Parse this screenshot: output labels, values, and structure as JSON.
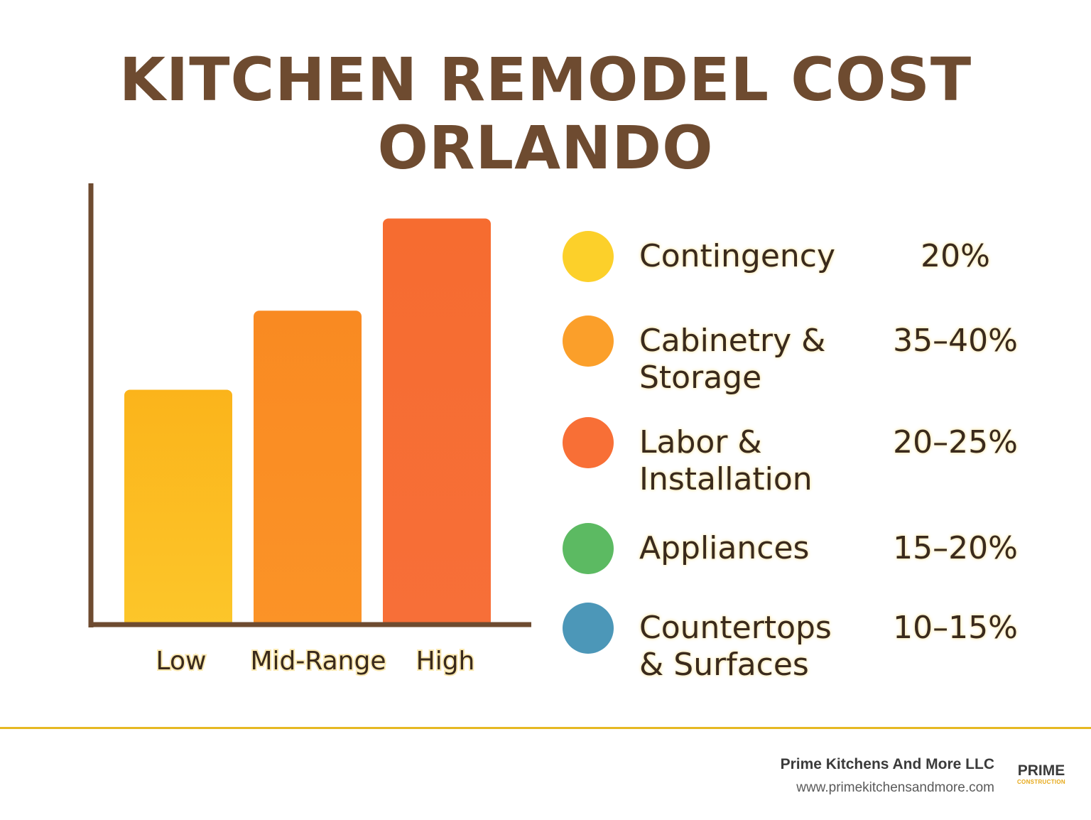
{
  "title": {
    "line1": "KITCHEN REMODEL COST",
    "line2": "ORLANDO"
  },
  "chart_data": {
    "type": "bar",
    "categories": [
      "Low",
      "Mid-Range",
      "High"
    ],
    "values": [
      53,
      71,
      92
    ],
    "ylim": [
      0,
      100
    ],
    "bar_colors": [
      "#fbbf1e",
      "#fa8c22",
      "#f76c32"
    ],
    "axis_color": "#6e4b30",
    "grid": false
  },
  "legend": {
    "items": [
      {
        "label_lines": [
          "Contingency"
        ],
        "value": "20%",
        "color": "#fcd02a"
      },
      {
        "label_lines": [
          "Cabinetry &",
          "Storage"
        ],
        "value": "35–40%",
        "color": "#fb9f2a"
      },
      {
        "label_lines": [
          "Labor &",
          "Installation"
        ],
        "value": "20–25%",
        "color": "#f86f36"
      },
      {
        "label_lines": [
          "Appliances"
        ],
        "value": "15–20%",
        "color": "#5cba62"
      },
      {
        "label_lines": [
          "Countertops",
          "& Surfaces"
        ],
        "value": "10–15%",
        "color": "#4c97b8"
      }
    ]
  },
  "footer": {
    "company": "Prime Kitchens And More LLC",
    "url": "www.primekitchensandmore.com",
    "logo_main": "PRIME",
    "logo_sub": "CONSTRUCTION"
  },
  "accent_color": "#e6b822"
}
